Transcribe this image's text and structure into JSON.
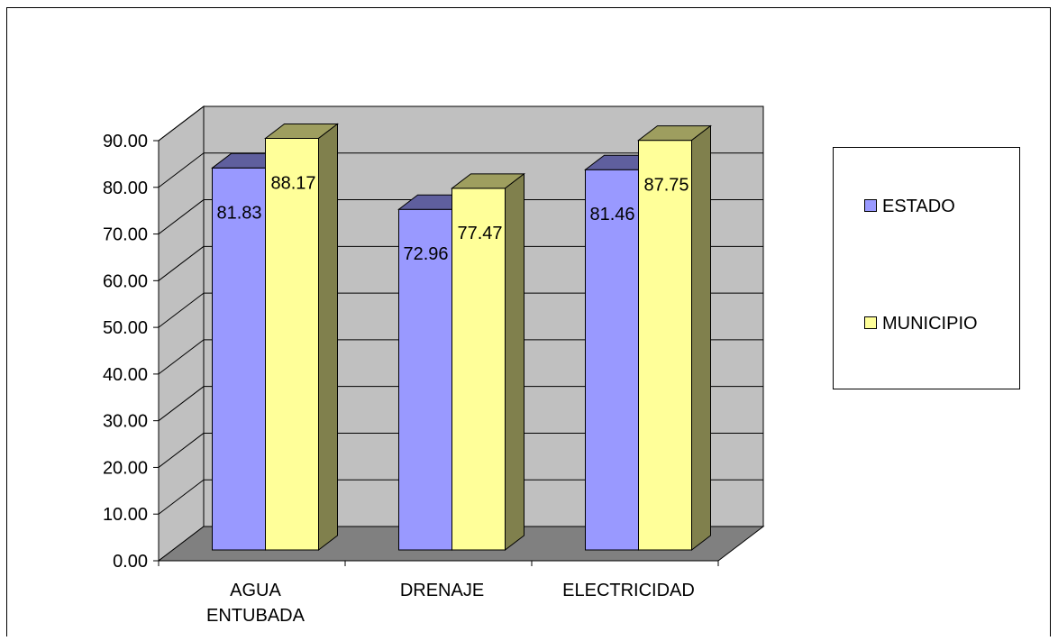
{
  "chart_data": {
    "type": "bar",
    "categories": [
      "AGUA ENTUBADA",
      "DRENAJE",
      "ELECTRICIDAD"
    ],
    "series": [
      {
        "name": "ESTADO",
        "values": [
          81.83,
          72.96,
          81.46
        ],
        "color": "#9999ff"
      },
      {
        "name": "MUNICIPIO",
        "values": [
          88.17,
          77.47,
          87.75
        ],
        "color": "#ffff99"
      }
    ],
    "data_labels": [
      [
        "81.83",
        "72.96",
        "81.46"
      ],
      [
        "88.17",
        "77.47",
        "87.75"
      ]
    ],
    "y_ticks": [
      "0.00",
      "10.00",
      "20.00",
      "30.00",
      "40.00",
      "50.00",
      "60.00",
      "70.00",
      "80.00",
      "90.00"
    ],
    "ylim": [
      0,
      90
    ],
    "grid": true,
    "legend_position": "right",
    "style": "3d-clustered-column",
    "colors": {
      "wall": "#c0c0c0",
      "floor": "#808080",
      "side_wall": "#c0c0c0"
    }
  }
}
